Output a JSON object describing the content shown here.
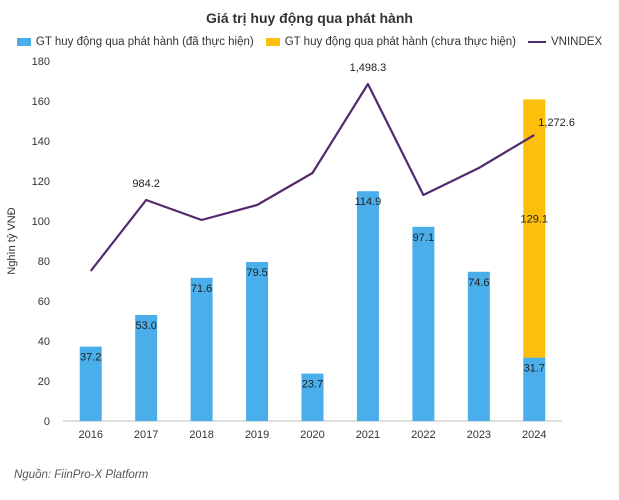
{
  "chart_data": {
    "type": "bar",
    "title": "Giá trị huy động qua phát hành",
    "ylabel": "Nghìn tỷ VNĐ",
    "xlabel": "",
    "ylim": [
      0,
      180
    ],
    "yticks": [
      "0",
      "20",
      "40",
      "60",
      "80",
      "100",
      "120",
      "140",
      "160",
      "180"
    ],
    "categories": [
      "2016",
      "2017",
      "2018",
      "2019",
      "2020",
      "2021",
      "2022",
      "2023",
      "2024"
    ],
    "series": [
      {
        "name": "GT huy động qua phát hành (đã thực hiện)",
        "kind": "bar",
        "stack": "main",
        "color": "#4aaeea",
        "values": [
          37.2,
          53.0,
          71.6,
          79.5,
          23.7,
          114.9,
          97.1,
          74.6,
          31.7
        ],
        "labels": [
          "37.2",
          "53.0",
          "71.6",
          "79.5",
          "23.7",
          "114.9",
          "97.1",
          "74.6",
          "31.7"
        ]
      },
      {
        "name": "GT huy động qua phát hành (chưa thực hiện)",
        "kind": "bar",
        "stack": "main",
        "color": "#fbbf0c",
        "values": [
          null,
          null,
          null,
          null,
          null,
          null,
          null,
          null,
          129.1
        ],
        "labels": [
          "",
          "",
          "",
          "",
          "",
          "",
          "",
          "",
          "129.1"
        ]
      },
      {
        "name": "VNINDEX",
        "kind": "line",
        "color": "#522a6e",
        "values_on_left_axis": [
          75,
          110.5,
          100.5,
          108,
          124,
          168.5,
          113,
          126.5,
          143
        ],
        "labels": [
          "",
          "984.2",
          "",
          "",
          "",
          "1,498.3",
          "",
          "",
          "1,272.6"
        ]
      }
    ],
    "grid": false,
    "legend_position": "top"
  },
  "source": "Nguồn: FiinPro-X Platform"
}
